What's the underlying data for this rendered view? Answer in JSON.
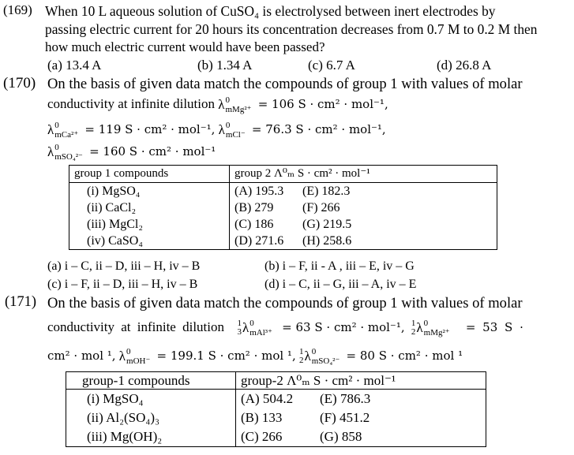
{
  "q169": {
    "number": "(169)",
    "lines": [
      "When 10 L aqueous solution of CuSO₄ is electrolysed between inert electrodes by",
      "passing electric current for 20 hours its concentration decreases from 0.7 M to 0.2 M then",
      "how much electric current would have been passed?"
    ],
    "options": [
      "(a) 13.4 A",
      "(b) 1.34  A",
      "(c) 6.7 A",
      "(d) 26.8 A"
    ]
  },
  "q170": {
    "number": "(170)",
    "line1": "On the basis of given data match the compounds of group 1 with values of molar",
    "line2_text": "conductivity at infinite dilution",
    "lambdas": [
      {
        "sym": "λ",
        "sup": "0",
        "sub": "mMg²⁺",
        "value": "= 106 S · cm² · mol⁻¹,"
      },
      {
        "sym": "λ",
        "sup": "0",
        "sub": "mCa²⁺",
        "value": "= 119 S · cm² · mol⁻¹,"
      },
      {
        "sym": "λ",
        "sup": "0",
        "sub": "mCl⁻",
        "value": "= 76.3 S · cm² · mol⁻¹,"
      },
      {
        "sym": "λ",
        "sup": "0",
        "sub": "mSO₄²⁻",
        "value": "= 160 S · cm² · mol⁻¹"
      }
    ],
    "table": {
      "header1": "group 1 compounds",
      "header2": "group 2  Λ⁰ₘ S · cm² · mol⁻¹",
      "col1": [
        "(i) MgSO₄",
        "(ii) CaCl₂",
        "(iii) MgCl₂",
        "(iv) CaSO₄"
      ],
      "col2a": [
        "(A) 195.3",
        "(B) 279",
        "(C) 186",
        "(D) 271.6"
      ],
      "col2b": [
        "(E) 182.3",
        "(F) 266",
        "(G) 219.5",
        "(H) 258.6"
      ]
    },
    "options": [
      "(a) i – C, ii – D, iii – H, iv – B",
      "(b) i – F, ii - A , iii – E, iv – G",
      "(c) i – F, ii – D, iii – H, iv – B",
      "(d) i – C, ii – G, iii – A, iv – E"
    ]
  },
  "q171": {
    "number": "(171)",
    "line1": "On the basis of given data match the compounds of group 1 with values of molar",
    "line2_text": "conductivity at infinite dilution",
    "terms": [
      {
        "frac": [
          "1",
          "3"
        ],
        "sym": "λ",
        "sup": "0",
        "sub": "mAl³⁺",
        "value": "= 63 S · cm² · mol⁻¹,"
      },
      {
        "frac": [
          "1",
          "2"
        ],
        "sym": "λ",
        "sup": "0",
        "sub": "mMg²⁺",
        "value": "= 53 S ·"
      },
      {
        "pre": "cm² · mol ¹,",
        "sym": "λ",
        "sup": "0",
        "sub": "mOH⁻",
        "value": "= 199.1 S · cm² · mol ¹,"
      },
      {
        "frac": [
          "1",
          "2"
        ],
        "sym": "λ",
        "sup": "0",
        "sub": "mSO₄²⁻",
        "value": "= 80 S · cm² · mol ¹"
      }
    ],
    "table": {
      "header1": "group-1 compounds",
      "header2": "group-2  Λ⁰ₘ S · cm² · mol⁻¹",
      "col1": [
        "(i) MgSO₄",
        "(ii) Al₂(SO₄)₃",
        "(iii) Mg(OH)₂"
      ],
      "col2a": [
        "(A) 504.2",
        "(B) 133",
        "(C) 266"
      ],
      "col2b": [
        "(E) 786.3",
        "(F) 451.2",
        "(G) 858"
      ]
    }
  }
}
